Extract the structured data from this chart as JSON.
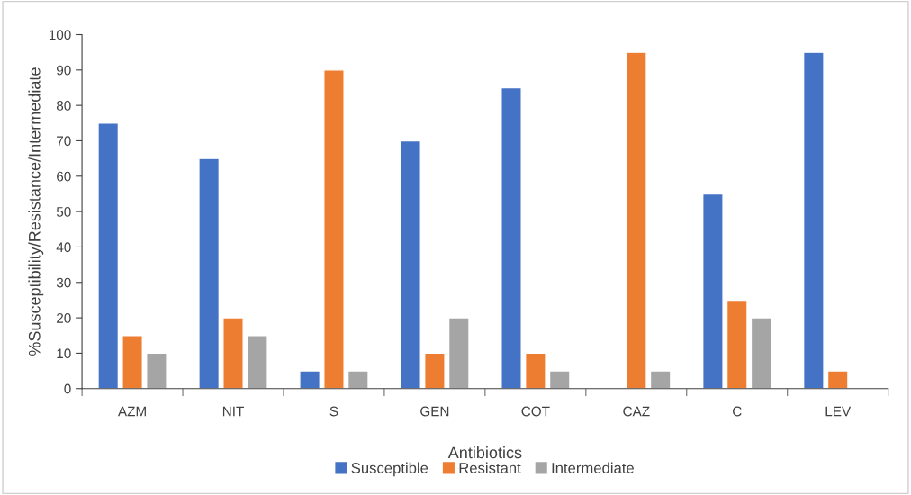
{
  "chart_data": {
    "type": "bar",
    "xlabel": "Antibiotics",
    "ylabel": "%Susceptibility/Resistance/Intermediate",
    "categories": [
      "AZM",
      "NIT",
      "S",
      "GEN",
      "COT",
      "CAZ",
      "C",
      "LEV"
    ],
    "series": [
      {
        "name": "Susceptible",
        "color": "#4472c4",
        "values": [
          75,
          65,
          5,
          70,
          85,
          null,
          55,
          95
        ]
      },
      {
        "name": "Resistant",
        "color": "#ed7d31",
        "values": [
          15,
          20,
          90,
          10,
          10,
          95,
          25,
          5
        ]
      },
      {
        "name": "Intermediate",
        "color": "#a5a5a5",
        "values": [
          10,
          15,
          5,
          20,
          5,
          5,
          20,
          null
        ]
      }
    ],
    "ylim": [
      0,
      100
    ],
    "yticks": [
      0,
      10,
      20,
      30,
      40,
      50,
      60,
      70,
      80,
      90,
      100
    ],
    "grid": false,
    "legend": "bottom"
  }
}
